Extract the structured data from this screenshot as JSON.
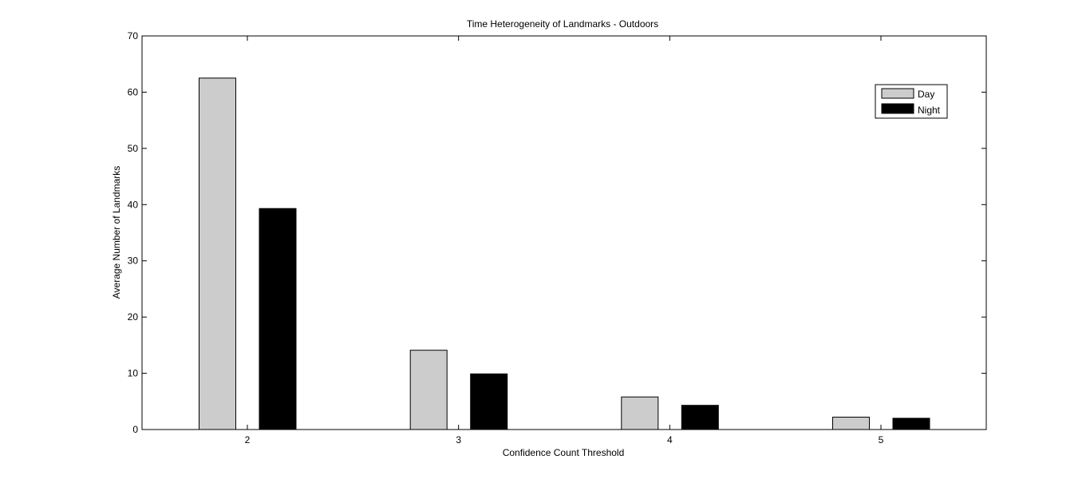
{
  "chart_data": {
    "type": "bar",
    "title": "Time Heterogeneity of Landmarks - Outdoors",
    "xlabel": "Confidence Count Threshold",
    "ylabel": "Average Number of Landmarks",
    "categories": [
      "2",
      "3",
      "4",
      "5"
    ],
    "ylim": [
      0,
      70
    ],
    "yticks": [
      0,
      10,
      20,
      30,
      40,
      50,
      60,
      70
    ],
    "series": [
      {
        "name": "Day",
        "color": "#cccccc",
        "values": [
          62.5,
          14.1,
          5.8,
          2.2
        ]
      },
      {
        "name": "Night",
        "color": "#000000",
        "values": [
          39.3,
          9.9,
          4.3,
          2.0
        ]
      }
    ],
    "legend": "top-right",
    "grid": false
  }
}
